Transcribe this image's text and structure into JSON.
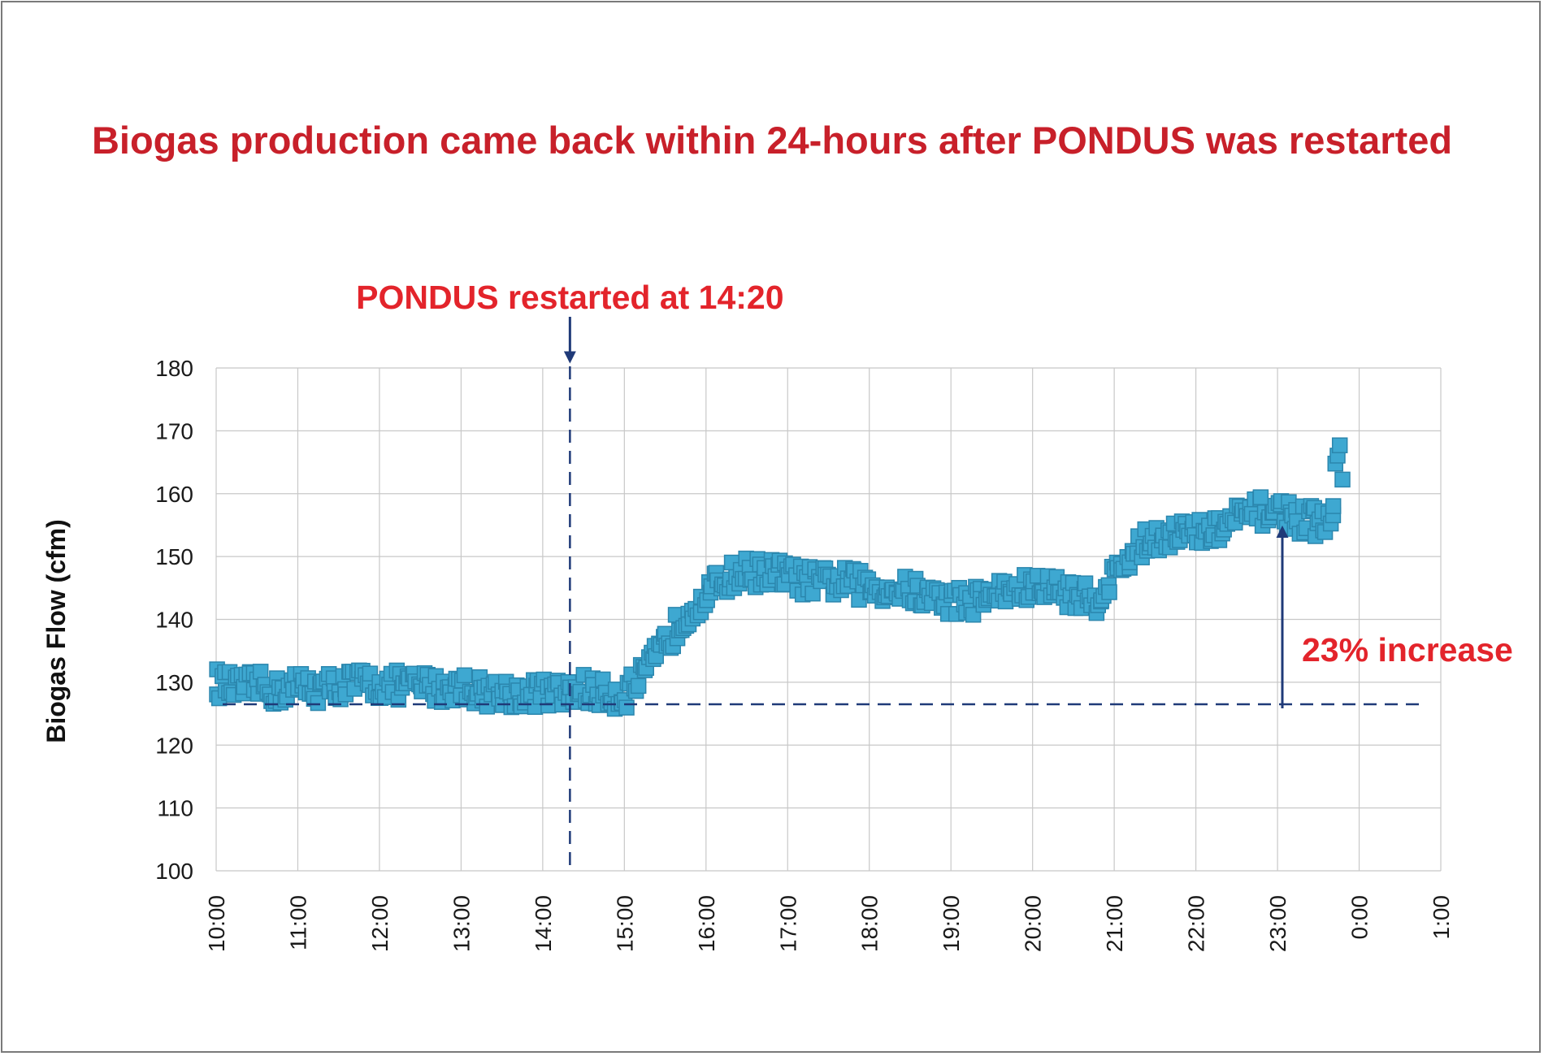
{
  "colors": {
    "title": "#c8202a",
    "annotation": "#e3242b",
    "marker_fill": "#3ea8d1",
    "marker_stroke": "#2b86ad",
    "reference_line": "#1f3a78",
    "grid": "#c8c8c8"
  },
  "chart_data": {
    "type": "scatter",
    "title": "Biogas production came back within 24-hours after PONDUS was restarted",
    "xlabel": "",
    "ylabel": "Biogas Flow (cfm)",
    "xlim": [
      "10:00",
      "1:00"
    ],
    "ylim": [
      100,
      180
    ],
    "x_ticks": [
      "10:00",
      "11:00",
      "12:00",
      "13:00",
      "14:00",
      "15:00",
      "16:00",
      "17:00",
      "18:00",
      "19:00",
      "20:00",
      "21:00",
      "22:00",
      "23:00",
      "0:00",
      "1:00"
    ],
    "y_ticks": [
      100,
      110,
      120,
      130,
      140,
      150,
      160,
      170,
      180
    ],
    "grid": true,
    "marker": "square",
    "series": [
      {
        "x": [
          "10:00",
          "10:15",
          "10:30",
          "10:45",
          "11:00",
          "11:15",
          "11:30",
          "11:45",
          "12:00",
          "12:15",
          "12:30",
          "12:45",
          "13:00",
          "13:15",
          "13:30",
          "13:45",
          "14:00",
          "14:15",
          "14:30",
          "14:45",
          "15:00",
          "15:15",
          "15:30",
          "15:45",
          "16:00",
          "16:15",
          "16:30",
          "16:45",
          "17:00",
          "17:15",
          "17:30",
          "17:45",
          "18:00",
          "18:15",
          "18:30",
          "18:45",
          "19:00",
          "19:15",
          "19:30",
          "19:45",
          "20:00",
          "20:15",
          "20:30",
          "20:45",
          "21:00",
          "21:15",
          "21:30",
          "21:45",
          "22:00",
          "22:15",
          "22:30",
          "22:45",
          "23:00",
          "23:15",
          "23:30",
          "23:40",
          "23:45",
          "23:50"
        ],
        "y": [
          130,
          129,
          129.5,
          128.5,
          129.5,
          129,
          129.5,
          130,
          129.5,
          129.5,
          129.5,
          129,
          129.5,
          128.5,
          128.5,
          128,
          128.5,
          128,
          129,
          128,
          128,
          131,
          136,
          141,
          144,
          146.5,
          147.5,
          147.5,
          147,
          146,
          146,
          146,
          145,
          145,
          144.5,
          143.5,
          143,
          143,
          144,
          144.5,
          145,
          145,
          144,
          143,
          147,
          151,
          153,
          154,
          153.5,
          154,
          156,
          157,
          157.5,
          156,
          155.5,
          155,
          168,
          162
        ]
      }
    ],
    "annotations": [
      {
        "text": "PONDUS restarted at 14:20",
        "x": "14:20"
      },
      {
        "text": "23% increase",
        "y_from": 126.5,
        "y_to": 155
      }
    ],
    "reference_lines": [
      {
        "orientation": "horizontal",
        "y": 126.5,
        "style": "dashed"
      },
      {
        "orientation": "vertical",
        "x": "14:20",
        "style": "dashed"
      }
    ]
  }
}
